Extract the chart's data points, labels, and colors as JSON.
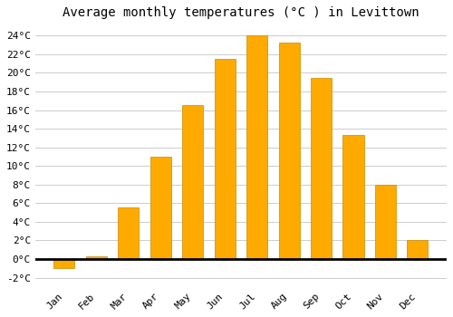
{
  "months": [
    "Jan",
    "Feb",
    "Mar",
    "Apr",
    "May",
    "Jun",
    "Jul",
    "Aug",
    "Sep",
    "Oct",
    "Nov",
    "Dec"
  ],
  "values": [
    -1.0,
    0.3,
    5.5,
    11.0,
    16.5,
    21.5,
    24.0,
    23.3,
    19.5,
    13.3,
    8.0,
    2.0
  ],
  "bar_color": "#FFAA00",
  "bar_edge_color": "#CC8800",
  "title": "Average monthly temperatures (°C ) in Levittown",
  "ylim": [
    -3,
    25
  ],
  "yticks": [
    -2,
    0,
    2,
    4,
    6,
    8,
    10,
    12,
    14,
    16,
    18,
    20,
    22,
    24
  ],
  "ytick_labels": [
    "-2°C",
    "0°C",
    "2°C",
    "4°C",
    "6°C",
    "8°C",
    "10°C",
    "12°C",
    "14°C",
    "16°C",
    "18°C",
    "20°C",
    "22°C",
    "24°C"
  ],
  "background_color": "#ffffff",
  "grid_color": "#cccccc",
  "title_fontsize": 10,
  "tick_fontsize": 8,
  "zero_line_color": "#000000",
  "bar_width": 0.65
}
